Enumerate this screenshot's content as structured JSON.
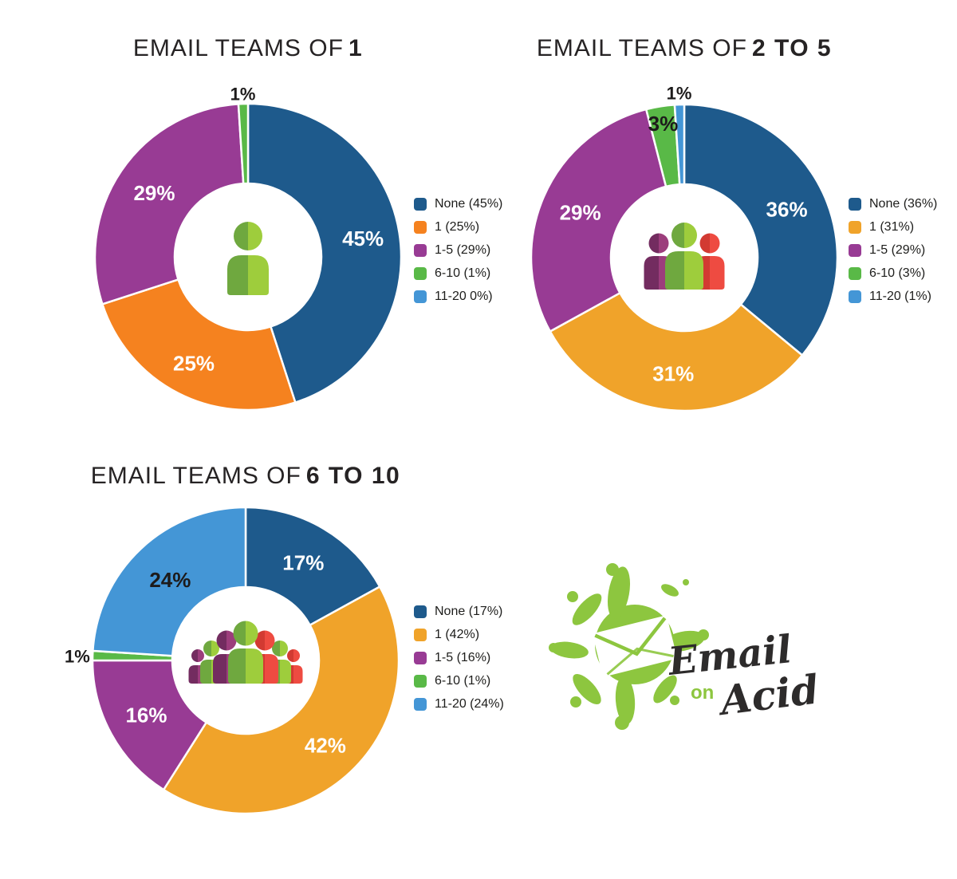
{
  "page_background": "#ffffff",
  "palette": {
    "none_blue": "#1E5A8C",
    "orange": "#F5821F",
    "gold": "#F0A32A",
    "purple": "#983B94",
    "green": "#59B947",
    "light_blue": "#4496D6",
    "label_dark": "#1d1b1b",
    "label_white": "#ffffff"
  },
  "icon_palette": {
    "green_dark": "#6FA83F",
    "green_light": "#9ECD3C",
    "purple_dark": "#732C60",
    "purple_light": "#9C3D7C",
    "red_dark": "#D23A32",
    "red_light": "#EE4B41"
  },
  "chart_data": [
    {
      "type": "pie",
      "donut": true,
      "title": "EMAIL TEAMS OF 1",
      "title_regular": "EMAIL TEAMS OF",
      "title_bold": "1",
      "categories": [
        "None",
        "1",
        "1-5",
        "6-10",
        "11-20"
      ],
      "values": [
        45,
        25,
        29,
        1,
        0
      ],
      "colors": [
        "#1E5A8C",
        "#F5821F",
        "#983B94",
        "#59B947",
        "#4496D6"
      ],
      "slice_labels": [
        "45%",
        "25%",
        "29%",
        "1%",
        ""
      ],
      "slice_label_colors": [
        "#ffffff",
        "#ffffff",
        "#ffffff",
        "#1d1b1b",
        ""
      ],
      "slice_label_pos": [
        "inside",
        "inside",
        "inside",
        "outside",
        "none"
      ],
      "label_r": [
        0.76,
        0.78,
        0.74,
        1.07,
        0
      ],
      "legend_position": "right",
      "legend_labels": [
        "None (45%)",
        "1 (25%)",
        "1-5 (29%)",
        "6-10 (1%)",
        "11-20 0%)"
      ],
      "center_icon": "team-of-one-icon"
    },
    {
      "type": "pie",
      "donut": true,
      "title": "EMAIL TEAMS OF 2 TO 5",
      "title_regular": "EMAIL TEAMS OF",
      "title_bold": "2 TO 5",
      "categories": [
        "None",
        "1",
        "1-5",
        "6-10",
        "11-20"
      ],
      "values": [
        36,
        31,
        29,
        3,
        1
      ],
      "colors": [
        "#1E5A8C",
        "#F0A32A",
        "#983B94",
        "#59B947",
        "#4496D6"
      ],
      "slice_labels": [
        "36%",
        "31%",
        "29%",
        "3%",
        "1%"
      ],
      "slice_label_colors": [
        "#ffffff",
        "#ffffff",
        "#ffffff",
        "#1d1b1b",
        "#1d1b1b"
      ],
      "slice_label_pos": [
        "inside",
        "inside",
        "inside",
        "inside",
        "outside"
      ],
      "label_r": [
        0.74,
        0.76,
        0.74,
        0.885,
        1.08
      ],
      "legend_position": "right",
      "legend_labels": [
        "None (36%)",
        "1 (31%)",
        "1-5 (29%)",
        "6-10 (3%)",
        "11-20 (1%)"
      ],
      "center_icon": "team-of-three-icon"
    },
    {
      "type": "pie",
      "donut": true,
      "title": "EMAIL TEAMS OF 6 TO 10",
      "title_regular": "EMAIL TEAMS OF",
      "title_bold": "6 TO 10",
      "categories": [
        "None",
        "1",
        "1-5",
        "6-10",
        "11-20"
      ],
      "values": [
        17,
        42,
        16,
        1,
        24
      ],
      "colors": [
        "#1E5A8C",
        "#F0A32A",
        "#983B94",
        "#59B947",
        "#4496D6"
      ],
      "slice_labels": [
        "17%",
        "42%",
        "16%",
        "1%",
        "24%"
      ],
      "slice_label_colors": [
        "#ffffff",
        "#ffffff",
        "#ffffff",
        "#1d1b1b",
        "#1d1b1b"
      ],
      "slice_label_pos": [
        "inside",
        "inside",
        "inside",
        "outside",
        "inside"
      ],
      "label_r": [
        0.74,
        0.76,
        0.74,
        1.1,
        0.72
      ],
      "legend_position": "right",
      "legend_labels": [
        "None (17%)",
        "1 (42%)",
        "1-5 (16%)",
        "6-10 (1%)",
        "11-20 (24%)"
      ],
      "center_icon": "team-crowd-icon"
    }
  ],
  "logo": {
    "word1": "Email",
    "word2": "on",
    "word3": "Acid",
    "accent": "#8DC63F",
    "ink": "#2D2B2B"
  }
}
